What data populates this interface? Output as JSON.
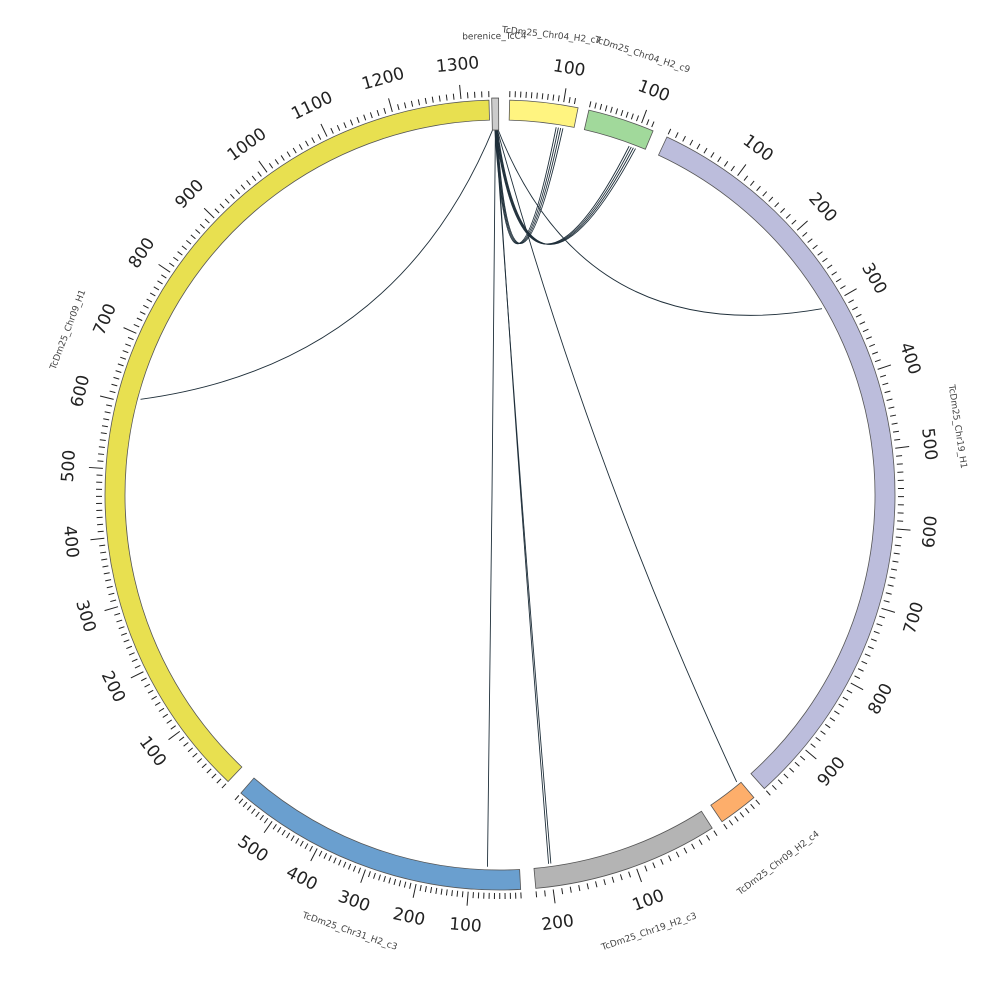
{
  "segments": [
    {
      "id": "berenice",
      "label": "berenice_TcC4",
      "start_deg": -1.2,
      "end_deg": -0.2,
      "color": "#cccccc",
      "length": 0,
      "major_step": 100
    },
    {
      "id": "chr04c7",
      "label": "TcDm25_Chr04_H2_c7",
      "start_deg": 1.4,
      "end_deg": 11.4,
      "color": "#fff480",
      "length": 128,
      "major_step": 100
    },
    {
      "id": "chr04c9",
      "label": "TcDm25_Chr04_H2_c9",
      "start_deg": 13.0,
      "end_deg": 22.8,
      "color": "#a1d99b",
      "length": 125,
      "major_step": 100
    },
    {
      "id": "chr19h1",
      "label": "TcDm25_Chr19_H1",
      "start_deg": 25.0,
      "end_deg": 138.0,
      "color": "#bcbddc",
      "length": 970,
      "major_step": 100
    },
    {
      "id": "chr09c4",
      "label": "TcDm25_Chr09_H2_c4",
      "start_deg": 140.0,
      "end_deg": 145.8,
      "color": "#fdae6b",
      "length": 60,
      "major_step": 100
    },
    {
      "id": "chr19c3",
      "label": "TcDm25_Chr19_H2_c3",
      "start_deg": 147.5,
      "end_deg": 174.8,
      "color": "#b4b4b4",
      "length": 220,
      "major_step": 100
    },
    {
      "id": "chr31c3",
      "label": "TcDm25_Chr31_H2_c3",
      "start_deg": 177.0,
      "end_deg": 221.0,
      "color": "#6a9fcf",
      "length": 580,
      "major_step": 100
    },
    {
      "id": "chr09h1",
      "label": "TcDm25_Chr09_H1",
      "start_deg": 223.5,
      "end_deg": 358.4,
      "color": "#e8e050",
      "length": 1340,
      "major_step": 100
    }
  ],
  "tick_labels": {
    "chr04c7": [
      "100"
    ],
    "chr04c9": [
      "100"
    ],
    "chr19h1": [
      "100",
      "200",
      "300",
      "400",
      "500",
      "600",
      "700",
      "800",
      "900"
    ],
    "chr09c4": [],
    "chr19c3": [
      "100",
      "200"
    ],
    "chr31c3": [
      "100",
      "200",
      "300",
      "400",
      "500"
    ],
    "chr09h1": [
      "100",
      "200",
      "300",
      "400",
      "500",
      "600",
      "700",
      "800",
      "900",
      "1000",
      "1100",
      "1200",
      "1300"
    ]
  },
  "links": [
    {
      "from": "berenice",
      "to": "chr04c7",
      "to_pos": 100,
      "color": "#1f2f4a",
      "bundle": 4
    },
    {
      "from": "berenice",
      "to": "chr04c9",
      "to_pos": 100,
      "color": "#6b5a10",
      "bundle": 4
    },
    {
      "from": "berenice",
      "to": "chr19h1",
      "to_pos": 300,
      "color": "#1f3a3a",
      "bundle": 1
    },
    {
      "from": "berenice",
      "to": "chr09h1",
      "to_pos": 610,
      "color": "#1f3a4a",
      "bundle": 1
    },
    {
      "from": "berenice",
      "to": "chr09c4",
      "to_pos": 5,
      "color": "#2a3a3a",
      "bundle": 1
    },
    {
      "from": "berenice",
      "to": "chr19c3",
      "to_pos": 200,
      "color": "#2f5a2a",
      "bundle": 2
    },
    {
      "from": "berenice",
      "to": "chr31c3",
      "to_pos": 65,
      "color": "#2a3a3a",
      "bundle": 1
    }
  ]
}
